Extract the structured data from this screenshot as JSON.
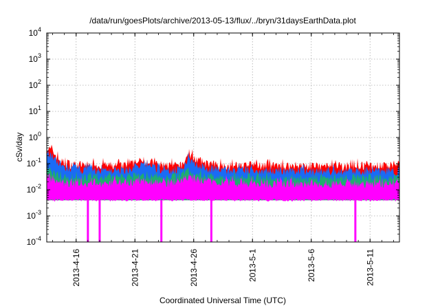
{
  "chart_data": {
    "type": "area",
    "title": "/data/run/goesPlots/archive/2013-05-13/flux/../bryn/31daysEarthData.plot",
    "xlabel": "Coordinated Universal Time (UTC)",
    "ylabel": "cSv/day",
    "yscale": "log",
    "ylim": [
      0.0001,
      10000
    ],
    "xlim": [
      "2013-04-13T12:00",
      "2013-05-13T12:00"
    ],
    "grid": true,
    "x_ticks": [
      {
        "date": "2013-04-16",
        "label": "2013-4-16"
      },
      {
        "date": "2013-04-21",
        "label": "2013-4-21"
      },
      {
        "date": "2013-04-26",
        "label": "2013-4-26"
      },
      {
        "date": "2013-05-01",
        "label": "2013-5-1"
      },
      {
        "date": "2013-05-06",
        "label": "2013-5-6"
      },
      {
        "date": "2013-05-11",
        "label": "2013-5-11"
      }
    ],
    "y_ticks": [
      {
        "value": 0.0001,
        "base": "10",
        "exp": "-4"
      },
      {
        "value": 0.001,
        "base": "10",
        "exp": "-3"
      },
      {
        "value": 0.01,
        "base": "10",
        "exp": "-2"
      },
      {
        "value": 0.1,
        "base": "10",
        "exp": "-1"
      },
      {
        "value": 1,
        "base": "10",
        "exp": "0"
      },
      {
        "value": 10,
        "base": "10",
        "exp": "1"
      },
      {
        "value": 100,
        "base": "10",
        "exp": "2"
      },
      {
        "value": 1000,
        "base": "10",
        "exp": "3"
      },
      {
        "value": 10000,
        "base": "10",
        "exp": "4"
      }
    ],
    "series": [
      {
        "color": "#ff0000",
        "anchors": [
          [
            "2013-04-13T12:00",
            0.4
          ],
          [
            "2013-04-14T00:00",
            0.3
          ],
          [
            "2013-04-14T12:00",
            0.15
          ],
          [
            "2013-04-15T00:00",
            0.1
          ],
          [
            "2013-04-16T00:00",
            0.09
          ],
          [
            "2013-04-18T00:00",
            0.085
          ],
          [
            "2013-04-20T00:00",
            0.08
          ],
          [
            "2013-04-21T12:00",
            0.12
          ],
          [
            "2013-04-22T00:00",
            0.13
          ],
          [
            "2013-04-23T00:00",
            0.09
          ],
          [
            "2013-04-24T00:00",
            0.085
          ],
          [
            "2013-04-25T00:00",
            0.08
          ],
          [
            "2013-04-25T12:00",
            0.22
          ],
          [
            "2013-04-26T00:00",
            0.18
          ],
          [
            "2013-04-26T12:00",
            0.12
          ],
          [
            "2013-04-27T00:00",
            0.1
          ],
          [
            "2013-04-29T00:00",
            0.08
          ],
          [
            "2013-05-01T00:00",
            0.085
          ],
          [
            "2013-05-03T00:00",
            0.08
          ],
          [
            "2013-05-05T00:00",
            0.08
          ],
          [
            "2013-05-07T00:00",
            0.075
          ],
          [
            "2013-05-09T00:00",
            0.08
          ],
          [
            "2013-05-11T00:00",
            0.085
          ],
          [
            "2013-05-13T12:00",
            0.08
          ]
        ]
      },
      {
        "color": "#1a6bf5",
        "anchors": [
          [
            "2013-04-13T12:00",
            0.3
          ],
          [
            "2013-04-14T00:00",
            0.2
          ],
          [
            "2013-04-14T12:00",
            0.1
          ],
          [
            "2013-04-15T00:00",
            0.07
          ],
          [
            "2013-04-16T00:00",
            0.06
          ],
          [
            "2013-04-18T00:00",
            0.055
          ],
          [
            "2013-04-20T00:00",
            0.055
          ],
          [
            "2013-04-21T12:00",
            0.08
          ],
          [
            "2013-04-22T00:00",
            0.09
          ],
          [
            "2013-04-23T00:00",
            0.06
          ],
          [
            "2013-04-24T00:00",
            0.055
          ],
          [
            "2013-04-25T00:00",
            0.055
          ],
          [
            "2013-04-25T12:00",
            0.16
          ],
          [
            "2013-04-26T00:00",
            0.12
          ],
          [
            "2013-04-26T12:00",
            0.08
          ],
          [
            "2013-04-27T00:00",
            0.065
          ],
          [
            "2013-04-29T00:00",
            0.055
          ],
          [
            "2013-05-01T00:00",
            0.055
          ],
          [
            "2013-05-03T00:00",
            0.055
          ],
          [
            "2013-05-05T00:00",
            0.05
          ],
          [
            "2013-05-07T00:00",
            0.05
          ],
          [
            "2013-05-09T00:00",
            0.05
          ],
          [
            "2013-05-11T00:00",
            0.055
          ],
          [
            "2013-05-13T12:00",
            0.05
          ]
        ]
      },
      {
        "color": "#1fae6e",
        "anchors": [
          [
            "2013-04-13T12:00",
            0.06
          ],
          [
            "2013-04-14T12:00",
            0.03
          ],
          [
            "2013-04-15T00:00",
            0.028
          ],
          [
            "2013-04-18T00:00",
            0.028
          ],
          [
            "2013-04-21T12:00",
            0.032
          ],
          [
            "2013-04-24T00:00",
            0.028
          ],
          [
            "2013-04-25T12:00",
            0.05
          ],
          [
            "2013-04-26T12:00",
            0.035
          ],
          [
            "2013-04-29T00:00",
            0.028
          ],
          [
            "2013-05-05T00:00",
            0.026
          ],
          [
            "2013-05-13T12:00",
            0.027
          ]
        ]
      },
      {
        "color": "#ff00ff",
        "anchors": [
          [
            "2013-04-13T12:00",
            0.03
          ],
          [
            "2013-04-14T12:00",
            0.02
          ],
          [
            "2013-04-15T00:00",
            0.018
          ],
          [
            "2013-04-18T00:00",
            0.018
          ],
          [
            "2013-04-21T12:00",
            0.02
          ],
          [
            "2013-04-24T00:00",
            0.018
          ],
          [
            "2013-04-25T12:00",
            0.03
          ],
          [
            "2013-04-26T12:00",
            0.022
          ],
          [
            "2013-04-29T00:00",
            0.018
          ],
          [
            "2013-05-05T00:00",
            0.017
          ],
          [
            "2013-05-13T12:00",
            0.017
          ]
        ]
      }
    ],
    "baseline": 0.004,
    "dropouts": [
      "2013-04-17T00:00",
      "2013-04-18T00:00",
      "2013-04-23T06:00",
      "2013-04-27T12:00",
      "2013-05-09T18:00"
    ]
  }
}
